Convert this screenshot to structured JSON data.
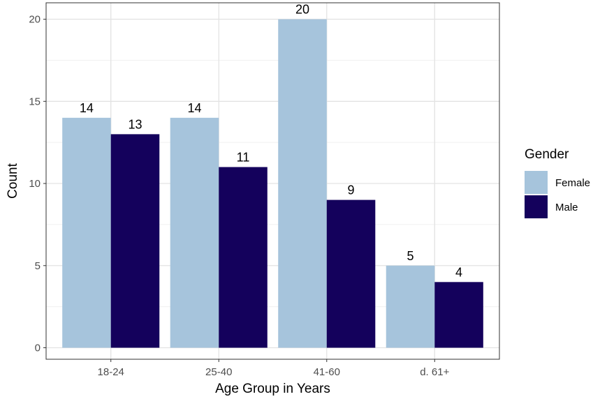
{
  "chart_data": {
    "type": "bar",
    "categories": [
      "18-24",
      "25-40",
      "41-60",
      "d. 61+"
    ],
    "series": [
      {
        "name": "Female",
        "values": [
          14,
          14,
          20,
          5
        ],
        "color": "#a6c4dc"
      },
      {
        "name": "Male",
        "values": [
          13,
          11,
          9,
          4
        ],
        "color": "#14015c"
      }
    ],
    "xlabel": "Age Group in Years",
    "ylabel": "Count",
    "ylim": [
      -0.7,
      21
    ],
    "yticks": [
      0,
      5,
      10,
      15,
      20
    ],
    "legend": {
      "title": "Gender",
      "position": "right"
    },
    "grid": true,
    "data_labels": true
  }
}
